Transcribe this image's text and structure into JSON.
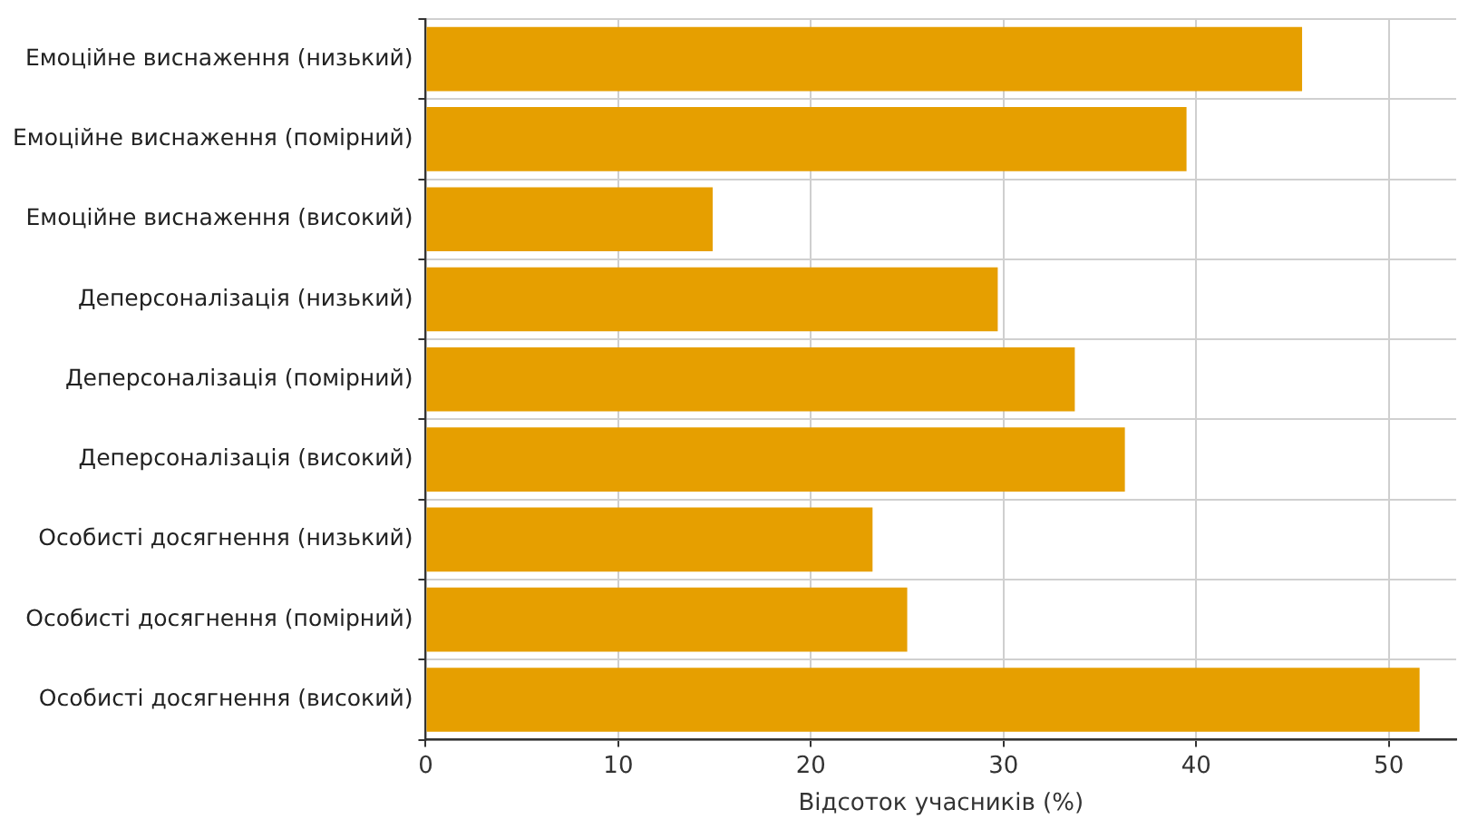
{
  "chart_data": {
    "type": "bar",
    "orientation": "horizontal",
    "xlabel": "Відсоток учасників (%)",
    "categories": [
      "Емоційне виснаження (низький)",
      "Емоційне виснаження (помірний)",
      "Емоційне виснаження (високий)",
      "Деперсоналізація (низький)",
      "Деперсоналізація (помірний)",
      "Деперсоналізація (високий)",
      "Особисті досягнення (низький)",
      "Особисті досягнення (помірний)",
      "Особисті досягнення (високий)"
    ],
    "values": [
      45.5,
      39.5,
      14.9,
      29.7,
      33.7,
      36.3,
      23.2,
      25.0,
      51.6
    ],
    "color": "#e69f00",
    "xlim": [
      0,
      53.5
    ],
    "xticks": [
      0,
      10,
      20,
      30,
      40,
      50
    ],
    "grid": true
  }
}
